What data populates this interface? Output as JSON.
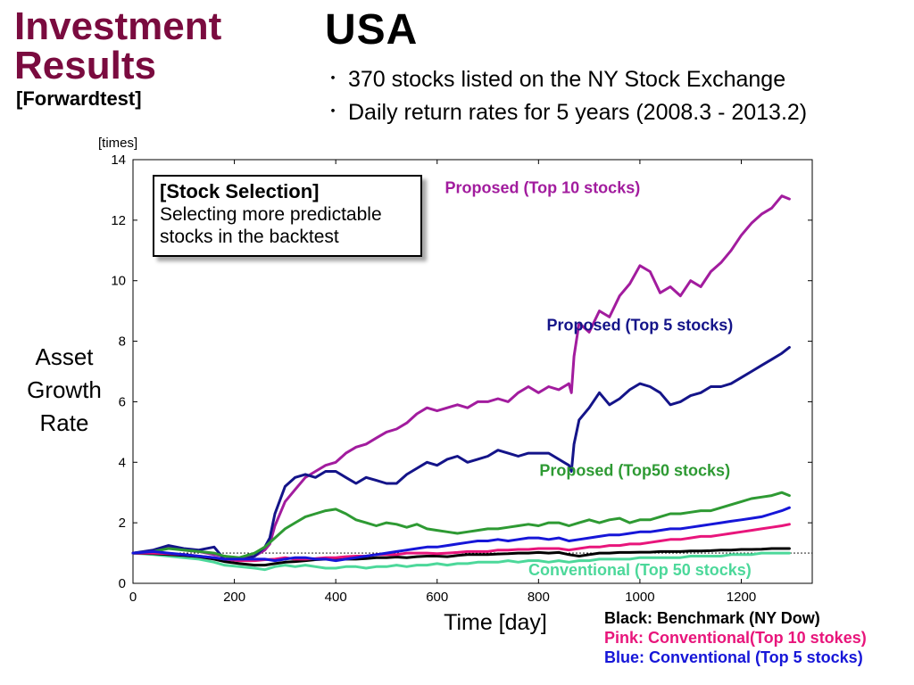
{
  "header": {
    "title_line1": "Investment",
    "title_line2": "Results",
    "subtitle": "[Forwardtest]",
    "country": "USA",
    "bullets": [
      "370 stocks listed on the NY Stock Exchange",
      "Daily return rates for 5 years (2008.3 - 2013.2)"
    ],
    "bullet_glyph": "・"
  },
  "callout": {
    "title": "[Stock Selection]",
    "line1": "Selecting more predictable",
    "line2": "stocks in the backtest"
  },
  "axes": {
    "y_title_lines": [
      "Asset",
      "Growth",
      "Rate"
    ],
    "y_unit": "[times]",
    "x_title": "Time [day]"
  },
  "legend": [
    {
      "text": "Black: Benchmark (NY Dow)",
      "color": "#000000"
    },
    {
      "text": "Pink: Conventional(Top 10 stokes)",
      "color": "#e8157b"
    },
    {
      "text": "Blue: Conventional (Top 5 stocks)",
      "color": "#1616d8"
    }
  ],
  "chart_data": {
    "type": "line",
    "xlim": [
      0,
      1340
    ],
    "ylim": [
      0,
      14
    ],
    "x_ticks": [
      0,
      200,
      400,
      600,
      800,
      1000,
      1200
    ],
    "y_ticks": [
      0,
      2,
      4,
      6,
      8,
      10,
      12,
      14
    ],
    "reference_line_y": 1,
    "series": [
      {
        "name": "Proposed (Top 10 stocks)",
        "label_pos": [
          808,
          12.9
        ],
        "color": "#a21c9e",
        "x": [
          0,
          40,
          70,
          100,
          130,
          160,
          180,
          210,
          240,
          260,
          270,
          280,
          300,
          320,
          340,
          360,
          380,
          400,
          420,
          440,
          460,
          480,
          500,
          520,
          540,
          560,
          580,
          600,
          620,
          640,
          660,
          680,
          700,
          720,
          740,
          760,
          780,
          800,
          820,
          840,
          860,
          865,
          870,
          880,
          900,
          920,
          940,
          960,
          980,
          1000,
          1020,
          1040,
          1060,
          1080,
          1100,
          1120,
          1140,
          1160,
          1180,
          1200,
          1220,
          1240,
          1260,
          1280,
          1295
        ],
        "values": [
          1.0,
          1.05,
          1.2,
          1.1,
          1.05,
          0.95,
          0.9,
          0.8,
          0.9,
          1.1,
          1.3,
          1.9,
          2.7,
          3.1,
          3.5,
          3.7,
          3.9,
          4.0,
          4.3,
          4.5,
          4.6,
          4.8,
          5.0,
          5.1,
          5.3,
          5.6,
          5.8,
          5.7,
          5.8,
          5.9,
          5.8,
          6.0,
          6.0,
          6.1,
          6.0,
          6.3,
          6.5,
          6.3,
          6.5,
          6.4,
          6.6,
          6.3,
          7.5,
          8.6,
          8.3,
          9.0,
          8.8,
          9.5,
          9.9,
          10.5,
          10.3,
          9.6,
          9.8,
          9.5,
          10.0,
          9.8,
          10.3,
          10.6,
          11.0,
          11.5,
          11.9,
          12.2,
          12.4,
          12.8,
          12.7
        ]
      },
      {
        "name": "Proposed (Top 5 stocks)",
        "label_pos": [
          1000,
          8.35
        ],
        "color": "#141489",
        "x": [
          0,
          40,
          70,
          100,
          130,
          160,
          180,
          210,
          240,
          260,
          270,
          280,
          300,
          320,
          340,
          360,
          380,
          400,
          420,
          440,
          460,
          480,
          500,
          520,
          540,
          560,
          580,
          600,
          620,
          640,
          660,
          680,
          700,
          720,
          740,
          760,
          780,
          800,
          820,
          840,
          860,
          865,
          870,
          880,
          900,
          920,
          940,
          960,
          980,
          1000,
          1020,
          1040,
          1060,
          1080,
          1100,
          1120,
          1140,
          1160,
          1180,
          1200,
          1220,
          1240,
          1260,
          1280,
          1295
        ],
        "values": [
          1.0,
          1.1,
          1.25,
          1.15,
          1.1,
          1.2,
          0.8,
          0.75,
          0.9,
          1.2,
          1.5,
          2.3,
          3.2,
          3.5,
          3.6,
          3.5,
          3.7,
          3.7,
          3.5,
          3.3,
          3.5,
          3.4,
          3.3,
          3.3,
          3.6,
          3.8,
          4.0,
          3.9,
          4.1,
          4.2,
          4.0,
          4.1,
          4.2,
          4.4,
          4.3,
          4.2,
          4.3,
          4.3,
          4.3,
          4.1,
          3.9,
          3.7,
          4.6,
          5.4,
          5.8,
          6.3,
          5.9,
          6.1,
          6.4,
          6.6,
          6.5,
          6.3,
          5.9,
          6.0,
          6.2,
          6.3,
          6.5,
          6.5,
          6.6,
          6.8,
          7.0,
          7.2,
          7.4,
          7.6,
          7.8
        ]
      },
      {
        "name": "Proposed (Top50 stocks)",
        "label_pos": [
          990,
          3.55
        ],
        "color": "#2e9a33",
        "x": [
          0,
          40,
          70,
          100,
          130,
          160,
          180,
          210,
          240,
          260,
          280,
          300,
          320,
          340,
          360,
          380,
          400,
          420,
          440,
          460,
          480,
          500,
          520,
          540,
          560,
          580,
          600,
          620,
          640,
          660,
          680,
          700,
          720,
          740,
          760,
          780,
          800,
          820,
          840,
          860,
          880,
          900,
          920,
          940,
          960,
          980,
          1000,
          1020,
          1040,
          1060,
          1080,
          1100,
          1120,
          1140,
          1160,
          1180,
          1200,
          1220,
          1240,
          1260,
          1280,
          1295
        ],
        "values": [
          1.0,
          1.05,
          1.15,
          1.1,
          1.05,
          1.0,
          0.9,
          0.85,
          1.0,
          1.2,
          1.5,
          1.8,
          2.0,
          2.2,
          2.3,
          2.4,
          2.45,
          2.3,
          2.1,
          2.0,
          1.9,
          2.0,
          1.95,
          1.85,
          1.95,
          1.8,
          1.75,
          1.7,
          1.65,
          1.7,
          1.75,
          1.8,
          1.8,
          1.85,
          1.9,
          1.95,
          1.9,
          2.0,
          2.0,
          1.9,
          2.0,
          2.1,
          2.0,
          2.1,
          2.15,
          2.0,
          2.1,
          2.1,
          2.2,
          2.3,
          2.3,
          2.35,
          2.4,
          2.4,
          2.5,
          2.6,
          2.7,
          2.8,
          2.85,
          2.9,
          3.0,
          2.9
        ]
      },
      {
        "name": "Conventional (Top 50 stocks)",
        "label_pos": [
          1000,
          0.27
        ],
        "color": "#4cd89a",
        "x": [
          0,
          40,
          70,
          100,
          130,
          160,
          180,
          210,
          240,
          260,
          280,
          300,
          320,
          340,
          360,
          380,
          400,
          420,
          440,
          460,
          480,
          500,
          520,
          540,
          560,
          580,
          600,
          620,
          640,
          660,
          680,
          700,
          720,
          740,
          760,
          780,
          800,
          820,
          840,
          860,
          880,
          900,
          920,
          940,
          960,
          980,
          1000,
          1020,
          1040,
          1060,
          1080,
          1100,
          1120,
          1140,
          1160,
          1180,
          1200,
          1220,
          1240,
          1260,
          1280,
          1295
        ],
        "values": [
          1.0,
          0.95,
          0.9,
          0.85,
          0.8,
          0.7,
          0.6,
          0.55,
          0.5,
          0.45,
          0.55,
          0.6,
          0.55,
          0.6,
          0.55,
          0.5,
          0.5,
          0.55,
          0.55,
          0.5,
          0.55,
          0.55,
          0.6,
          0.55,
          0.6,
          0.6,
          0.65,
          0.6,
          0.65,
          0.65,
          0.7,
          0.7,
          0.7,
          0.75,
          0.7,
          0.75,
          0.75,
          0.7,
          0.75,
          0.7,
          0.75,
          0.75,
          0.8,
          0.8,
          0.8,
          0.8,
          0.85,
          0.85,
          0.85,
          0.85,
          0.85,
          0.9,
          0.9,
          0.9,
          0.9,
          0.95,
          0.95,
          0.95,
          1.0,
          1.0,
          1.0,
          1.0
        ]
      },
      {
        "name": "Benchmark (NY Dow)",
        "color": "#000000",
        "x": [
          0,
          40,
          70,
          100,
          130,
          160,
          180,
          210,
          240,
          260,
          280,
          300,
          320,
          340,
          360,
          380,
          400,
          420,
          440,
          460,
          480,
          500,
          520,
          540,
          560,
          580,
          600,
          620,
          640,
          660,
          680,
          700,
          720,
          740,
          760,
          780,
          800,
          820,
          840,
          860,
          880,
          900,
          920,
          940,
          960,
          980,
          1000,
          1020,
          1040,
          1060,
          1080,
          1100,
          1120,
          1140,
          1160,
          1180,
          1200,
          1220,
          1240,
          1260,
          1280,
          1295
        ],
        "values": [
          1.0,
          0.98,
          0.95,
          0.92,
          0.88,
          0.8,
          0.72,
          0.65,
          0.6,
          0.6,
          0.65,
          0.7,
          0.72,
          0.75,
          0.78,
          0.8,
          0.82,
          0.8,
          0.8,
          0.82,
          0.85,
          0.85,
          0.87,
          0.85,
          0.88,
          0.9,
          0.9,
          0.88,
          0.92,
          0.95,
          0.95,
          0.95,
          0.97,
          0.98,
          1.0,
          1.0,
          1.02,
          1.0,
          1.02,
          0.95,
          0.9,
          0.95,
          1.0,
          1.0,
          1.02,
          1.02,
          1.03,
          1.03,
          1.05,
          1.05,
          1.05,
          1.07,
          1.07,
          1.08,
          1.1,
          1.1,
          1.12,
          1.12,
          1.13,
          1.15,
          1.15,
          1.15
        ]
      },
      {
        "name": "Conventional (Top 10 stokes)",
        "color": "#e8157b",
        "x": [
          0,
          40,
          70,
          100,
          130,
          160,
          180,
          210,
          240,
          260,
          280,
          300,
          320,
          340,
          360,
          380,
          400,
          420,
          440,
          460,
          480,
          500,
          520,
          540,
          560,
          580,
          600,
          620,
          640,
          660,
          680,
          700,
          720,
          740,
          760,
          780,
          800,
          820,
          840,
          860,
          880,
          900,
          920,
          940,
          960,
          980,
          1000,
          1020,
          1040,
          1060,
          1080,
          1100,
          1120,
          1140,
          1160,
          1180,
          1200,
          1220,
          1240,
          1260,
          1280,
          1295
        ],
        "values": [
          1.0,
          1.0,
          0.98,
          0.95,
          0.9,
          0.85,
          0.8,
          0.75,
          0.75,
          0.78,
          0.8,
          0.85,
          0.8,
          0.8,
          0.82,
          0.85,
          0.85,
          0.88,
          0.9,
          0.9,
          0.95,
          0.95,
          0.95,
          1.0,
          1.0,
          1.0,
          0.98,
          1.0,
          1.02,
          1.05,
          1.05,
          1.05,
          1.1,
          1.1,
          1.12,
          1.12,
          1.15,
          1.15,
          1.15,
          1.1,
          1.15,
          1.2,
          1.2,
          1.25,
          1.25,
          1.3,
          1.3,
          1.35,
          1.4,
          1.45,
          1.45,
          1.5,
          1.55,
          1.55,
          1.6,
          1.65,
          1.7,
          1.75,
          1.8,
          1.85,
          1.9,
          1.95
        ]
      },
      {
        "name": "Conventional (Top 5 stocks)",
        "color": "#1616d8",
        "x": [
          0,
          40,
          70,
          100,
          130,
          160,
          180,
          210,
          240,
          260,
          280,
          300,
          320,
          340,
          360,
          380,
          400,
          420,
          440,
          460,
          480,
          500,
          520,
          540,
          560,
          580,
          600,
          620,
          640,
          660,
          680,
          700,
          720,
          740,
          760,
          780,
          800,
          820,
          840,
          860,
          880,
          900,
          920,
          940,
          960,
          980,
          1000,
          1020,
          1040,
          1060,
          1080,
          1100,
          1120,
          1140,
          1160,
          1180,
          1200,
          1220,
          1240,
          1260,
          1280,
          1295
        ],
        "values": [
          1.0,
          1.05,
          1.0,
          0.95,
          0.9,
          0.85,
          0.8,
          0.8,
          0.8,
          0.8,
          0.75,
          0.8,
          0.85,
          0.85,
          0.8,
          0.8,
          0.75,
          0.8,
          0.85,
          0.9,
          0.95,
          1.0,
          1.05,
          1.1,
          1.15,
          1.2,
          1.2,
          1.25,
          1.3,
          1.35,
          1.4,
          1.4,
          1.45,
          1.4,
          1.45,
          1.5,
          1.5,
          1.45,
          1.5,
          1.4,
          1.45,
          1.5,
          1.55,
          1.6,
          1.6,
          1.65,
          1.7,
          1.7,
          1.75,
          1.8,
          1.8,
          1.85,
          1.9,
          1.95,
          2.0,
          2.05,
          2.1,
          2.15,
          2.2,
          2.3,
          2.4,
          2.5
        ]
      }
    ]
  }
}
